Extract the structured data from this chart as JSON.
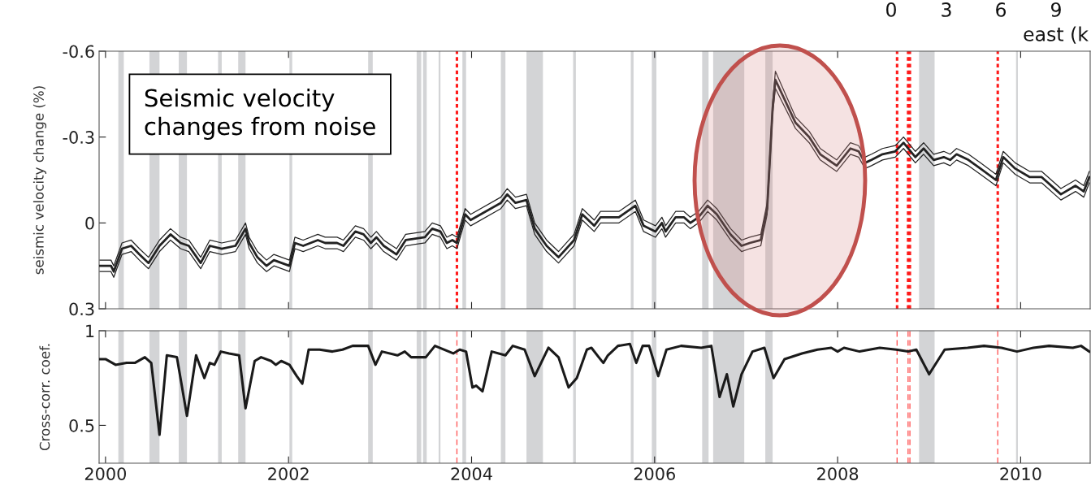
{
  "chart_data": [
    {
      "type": "line",
      "ylabel": "seismic velocity change (%)",
      "xlim": [
        1999.93,
        2010.76
      ],
      "xticks": [
        2000,
        2002,
        2004,
        2006,
        2008,
        2010
      ],
      "ylim": [
        0.3,
        -0.6
      ],
      "yticks": [
        {
          "value": -0.6,
          "label": "-0.6"
        },
        {
          "value": -0.3,
          "label": "-0.3"
        },
        0,
        0.3
      ],
      "tick_labels": "y",
      "x": [
        1999.94,
        2000.06,
        2000.09,
        2000.18,
        2000.28,
        2000.37,
        2000.47,
        2000.59,
        2000.71,
        2000.82,
        2000.91,
        2001.04,
        2001.14,
        2001.27,
        2001.42,
        2001.53,
        2001.57,
        2001.66,
        2001.76,
        2001.84,
        2002.01,
        2002.07,
        2002.16,
        2002.32,
        2002.4,
        2002.53,
        2002.6,
        2002.73,
        2002.82,
        2002.9,
        2002.96,
        2003.04,
        2003.18,
        2003.28,
        2003.49,
        2003.57,
        2003.66,
        2003.73,
        2003.79,
        2003.84,
        2003.93,
        2003.99,
        2004.32,
        2004.39,
        2004.48,
        2004.6,
        2004.69,
        2004.82,
        2004.95,
        2005.12,
        2005.21,
        2005.34,
        2005.41,
        2005.61,
        2005.79,
        2005.88,
        2006.01,
        2006.08,
        2006.12,
        2006.23,
        2006.32,
        2006.39,
        2006.48,
        2006.58,
        2006.68,
        2006.83,
        2006.95,
        2007.04,
        2007.16,
        2007.23,
        2007.29,
        2007.32,
        2007.54,
        2007.69,
        2007.81,
        2007.99,
        2008.14,
        2008.23,
        2008.3,
        2008.37,
        2008.49,
        2008.63,
        2008.72,
        2008.85,
        2008.94,
        2009.05,
        2009.16,
        2009.23,
        2009.3,
        2009.43,
        2009.56,
        2009.73,
        2009.81,
        2009.94,
        2010.1,
        2010.23,
        2010.44,
        2010.6,
        2010.69,
        2010.75
      ],
      "series": [
        {
          "color": "#222222",
          "values": [
            0.15,
            0.15,
            0.17,
            0.09,
            0.08,
            0.11,
            0.14,
            0.08,
            0.04,
            0.07,
            0.08,
            0.14,
            0.08,
            0.09,
            0.08,
            0.02,
            0.07,
            0.12,
            0.15,
            0.13,
            0.15,
            0.07,
            0.08,
            0.06,
            0.07,
            0.07,
            0.08,
            0.03,
            0.04,
            0.07,
            0.05,
            0.08,
            0.11,
            0.06,
            0.05,
            0.02,
            0.03,
            0.07,
            0.06,
            0.07,
            -0.03,
            -0.01,
            -0.07,
            -0.1,
            -0.07,
            -0.08,
            0.02,
            0.08,
            0.12,
            0.06,
            -0.03,
            0.01,
            -0.02,
            -0.02,
            -0.06,
            0.01,
            0.03,
            0.0,
            0.03,
            -0.02,
            -0.02,
            0.0,
            -0.02,
            -0.06,
            -0.03,
            0.04,
            0.08,
            0.07,
            0.06,
            -0.05,
            -0.4,
            -0.5,
            -0.35,
            -0.3,
            -0.24,
            -0.2,
            -0.26,
            -0.25,
            -0.21,
            -0.22,
            -0.24,
            -0.25,
            -0.28,
            -0.23,
            -0.26,
            -0.22,
            -0.23,
            -0.22,
            -0.24,
            -0.22,
            -0.19,
            -0.15,
            -0.23,
            -0.19,
            -0.16,
            -0.16,
            -0.1,
            -0.13,
            -0.11,
            -0.16
          ]
        },
        {
          "color": "#222222",
          "values": [
            0.13,
            0.13,
            0.15,
            0.07,
            0.06,
            0.09,
            0.12,
            0.06,
            0.02,
            0.05,
            0.06,
            0.12,
            0.06,
            0.07,
            0.06,
            0.0,
            0.05,
            0.1,
            0.13,
            0.11,
            0.13,
            0.05,
            0.06,
            0.04,
            0.05,
            0.05,
            0.06,
            0.01,
            0.02,
            0.05,
            0.03,
            0.06,
            0.09,
            0.04,
            0.03,
            0.0,
            0.01,
            0.05,
            0.04,
            0.05,
            -0.05,
            -0.03,
            -0.09,
            -0.12,
            -0.09,
            -0.1,
            0.0,
            0.06,
            0.1,
            0.04,
            -0.05,
            -0.01,
            -0.04,
            -0.04,
            -0.08,
            -0.01,
            0.01,
            -0.02,
            0.01,
            -0.04,
            -0.04,
            -0.02,
            -0.04,
            -0.08,
            -0.05,
            0.02,
            0.06,
            0.05,
            0.04,
            -0.07,
            -0.42,
            -0.53,
            -0.37,
            -0.32,
            -0.26,
            -0.22,
            -0.28,
            -0.27,
            -0.23,
            -0.24,
            -0.26,
            -0.27,
            -0.3,
            -0.25,
            -0.28,
            -0.24,
            -0.25,
            -0.24,
            -0.26,
            -0.24,
            -0.21,
            -0.17,
            -0.25,
            -0.21,
            -0.18,
            -0.18,
            -0.12,
            -0.15,
            -0.13,
            -0.18
          ]
        },
        {
          "color": "#222222",
          "values": [
            0.17,
            0.17,
            0.19,
            0.11,
            0.1,
            0.13,
            0.16,
            0.1,
            0.06,
            0.09,
            0.1,
            0.16,
            0.1,
            0.11,
            0.1,
            0.04,
            0.09,
            0.14,
            0.17,
            0.15,
            0.17,
            0.09,
            0.1,
            0.08,
            0.09,
            0.09,
            0.1,
            0.05,
            0.06,
            0.09,
            0.07,
            0.1,
            0.13,
            0.08,
            0.07,
            0.04,
            0.05,
            0.09,
            0.08,
            0.09,
            -0.01,
            0.01,
            -0.05,
            -0.08,
            -0.05,
            -0.06,
            0.04,
            0.1,
            0.14,
            0.08,
            -0.01,
            0.03,
            0.0,
            0.0,
            -0.04,
            0.03,
            0.05,
            0.02,
            0.05,
            0.0,
            0.0,
            0.02,
            0.0,
            -0.04,
            -0.01,
            0.06,
            0.1,
            0.09,
            0.08,
            -0.03,
            -0.38,
            -0.47,
            -0.33,
            -0.28,
            -0.22,
            -0.18,
            -0.24,
            -0.23,
            -0.19,
            -0.2,
            -0.22,
            -0.23,
            -0.26,
            -0.21,
            -0.24,
            -0.2,
            -0.21,
            -0.2,
            -0.22,
            -0.2,
            -0.17,
            -0.13,
            -0.21,
            -0.17,
            -0.14,
            -0.14,
            -0.08,
            -0.11,
            -0.09,
            -0.14
          ]
        }
      ],
      "bands": [
        {
          "axis": "x",
          "from": 2000.14,
          "to": 2000.2,
          "color": "#d3d4d6"
        },
        {
          "axis": "x",
          "from": 2000.48,
          "to": 2000.59,
          "color": "#d3d4d6"
        },
        {
          "axis": "x",
          "from": 2000.8,
          "to": 2000.89,
          "color": "#d3d4d6"
        },
        {
          "axis": "x",
          "from": 2001.23,
          "to": 2001.27,
          "color": "#d3d4d6"
        },
        {
          "axis": "x",
          "from": 2001.45,
          "to": 2001.53,
          "color": "#d3d4d6"
        },
        {
          "axis": "x",
          "from": 2002.01,
          "to": 2002.04,
          "color": "#d3d4d6"
        },
        {
          "axis": "x",
          "from": 2002.87,
          "to": 2002.92,
          "color": "#d3d4d6"
        },
        {
          "axis": "x",
          "from": 2003.4,
          "to": 2003.45,
          "color": "#d3d4d6"
        },
        {
          "axis": "x",
          "from": 2003.47,
          "to": 2003.51,
          "color": "#d3d4d6"
        },
        {
          "axis": "x",
          "from": 2003.64,
          "to": 2003.66,
          "color": "#d3d4d6"
        },
        {
          "axis": "x",
          "from": 2003.9,
          "to": 2003.94,
          "color": "#d3d4d6"
        },
        {
          "axis": "x",
          "from": 2004.32,
          "to": 2004.37,
          "color": "#d3d4d6"
        },
        {
          "axis": "x",
          "from": 2004.6,
          "to": 2004.78,
          "color": "#d3d4d6"
        },
        {
          "axis": "x",
          "from": 2005.11,
          "to": 2005.14,
          "color": "#d3d4d6"
        },
        {
          "axis": "x",
          "from": 2005.74,
          "to": 2005.77,
          "color": "#d3d4d6"
        },
        {
          "axis": "x",
          "from": 2005.97,
          "to": 2006.02,
          "color": "#d3d4d6"
        },
        {
          "axis": "x",
          "from": 2006.52,
          "to": 2006.59,
          "color": "#d3d4d6"
        },
        {
          "axis": "x",
          "from": 2006.64,
          "to": 2006.98,
          "color": "#d3d4d6"
        },
        {
          "axis": "x",
          "from": 2007.21,
          "to": 2007.29,
          "color": "#d3d4d6"
        },
        {
          "axis": "x",
          "from": 2008.89,
          "to": 2009.06,
          "color": "#d3d4d6"
        },
        {
          "axis": "x",
          "from": 2009.95,
          "to": 2009.97,
          "color": "#d3d4d6"
        }
      ],
      "ref_lines": [
        {
          "axis": "x",
          "value": 2003.84,
          "color": "#ff1a1a",
          "line_style": "dotted"
        },
        {
          "axis": "x",
          "value": 2008.65,
          "color": "#ff1a1a",
          "line_style": "dotted"
        },
        {
          "axis": "x",
          "value": 2008.77,
          "color": "#ff1a1a",
          "line_style": "dotted"
        },
        {
          "axis": "x",
          "value": 2008.79,
          "color": "#ff1a1a",
          "line_style": "dotted"
        },
        {
          "axis": "x",
          "value": 2009.75,
          "color": "#ff1a1a",
          "line_style": "dotted"
        }
      ],
      "annotations": [
        "Seismic velocity\nchanges from noise",
        "0",
        "3",
        "6",
        "9",
        "east (k"
      ]
    },
    {
      "type": "line",
      "ylabel": "Cross-corr. coef.",
      "xlim": [
        1999.93,
        2010.76
      ],
      "xticks": [
        2000,
        2002,
        2004,
        2006,
        2008,
        2010
      ],
      "ylim": [
        0.3,
        1
      ],
      "yticks": [
        0.5,
        1
      ],
      "x": [
        1999.93,
        2000.0,
        2000.11,
        2000.23,
        2000.32,
        2000.43,
        2000.5,
        2000.59,
        2000.67,
        2000.78,
        2000.89,
        2000.99,
        2001.08,
        2001.14,
        2001.19,
        2001.26,
        2001.35,
        2001.46,
        2001.53,
        2001.63,
        2001.7,
        2001.81,
        2001.86,
        2001.92,
        2002.01,
        2002.09,
        2002.15,
        2002.22,
        2002.34,
        2002.48,
        2002.59,
        2002.7,
        2002.87,
        2002.95,
        2003.02,
        2003.19,
        2003.27,
        2003.34,
        2003.5,
        2003.6,
        2003.8,
        2003.87,
        2003.94,
        2004.01,
        2004.05,
        2004.12,
        2004.22,
        2004.37,
        2004.45,
        2004.58,
        2004.69,
        2004.84,
        2004.95,
        2005.06,
        2005.15,
        2005.26,
        2005.31,
        2005.39,
        2005.44,
        2005.49,
        2005.6,
        2005.73,
        2005.8,
        2005.87,
        2005.94,
        2006.04,
        2006.13,
        2006.29,
        2006.51,
        2006.62,
        2006.71,
        2006.79,
        2006.86,
        2006.95,
        2007.07,
        2007.2,
        2007.3,
        2007.42,
        2007.61,
        2007.78,
        2007.93,
        2008.0,
        2008.07,
        2008.24,
        2008.46,
        2008.64,
        2008.77,
        2008.86,
        2009.0,
        2009.17,
        2009.42,
        2009.6,
        2009.79,
        2009.96,
        2010.14,
        2010.31,
        2010.57,
        2010.66,
        2010.75
      ],
      "series": [
        {
          "color": "#1a1a1a",
          "values": [
            0.85,
            0.85,
            0.82,
            0.83,
            0.83,
            0.86,
            0.83,
            0.45,
            0.87,
            0.86,
            0.55,
            0.87,
            0.75,
            0.83,
            0.82,
            0.89,
            0.88,
            0.87,
            0.59,
            0.84,
            0.86,
            0.84,
            0.82,
            0.84,
            0.82,
            0.76,
            0.72,
            0.9,
            0.9,
            0.89,
            0.9,
            0.92,
            0.92,
            0.82,
            0.89,
            0.87,
            0.89,
            0.86,
            0.86,
            0.92,
            0.88,
            0.9,
            0.89,
            0.7,
            0.71,
            0.68,
            0.89,
            0.87,
            0.92,
            0.9,
            0.76,
            0.91,
            0.86,
            0.7,
            0.75,
            0.9,
            0.91,
            0.86,
            0.83,
            0.87,
            0.92,
            0.93,
            0.83,
            0.92,
            0.92,
            0.76,
            0.9,
            0.92,
            0.91,
            0.92,
            0.65,
            0.77,
            0.6,
            0.77,
            0.89,
            0.91,
            0.75,
            0.85,
            0.88,
            0.9,
            0.91,
            0.89,
            0.91,
            0.89,
            0.91,
            0.9,
            0.89,
            0.9,
            0.77,
            0.9,
            0.91,
            0.92,
            0.91,
            0.89,
            0.91,
            0.92,
            0.91,
            0.92,
            0.89
          ]
        }
      ],
      "bands": [
        {
          "axis": "x",
          "from": 2000.14,
          "to": 2000.2,
          "color": "#d3d4d6"
        },
        {
          "axis": "x",
          "from": 2000.48,
          "to": 2000.59,
          "color": "#d3d4d6"
        },
        {
          "axis": "x",
          "from": 2000.8,
          "to": 2000.89,
          "color": "#d3d4d6"
        },
        {
          "axis": "x",
          "from": 2001.23,
          "to": 2001.27,
          "color": "#d3d4d6"
        },
        {
          "axis": "x",
          "from": 2001.45,
          "to": 2001.53,
          "color": "#d3d4d6"
        },
        {
          "axis": "x",
          "from": 2002.01,
          "to": 2002.04,
          "color": "#d3d4d6"
        },
        {
          "axis": "x",
          "from": 2002.87,
          "to": 2002.92,
          "color": "#d3d4d6"
        },
        {
          "axis": "x",
          "from": 2003.4,
          "to": 2003.45,
          "color": "#d3d4d6"
        },
        {
          "axis": "x",
          "from": 2003.47,
          "to": 2003.51,
          "color": "#d3d4d6"
        },
        {
          "axis": "x",
          "from": 2003.64,
          "to": 2003.66,
          "color": "#d3d4d6"
        },
        {
          "axis": "x",
          "from": 2003.9,
          "to": 2003.94,
          "color": "#d3d4d6"
        },
        {
          "axis": "x",
          "from": 2004.32,
          "to": 2004.37,
          "color": "#d3d4d6"
        },
        {
          "axis": "x",
          "from": 2004.6,
          "to": 2004.78,
          "color": "#d3d4d6"
        },
        {
          "axis": "x",
          "from": 2005.11,
          "to": 2005.14,
          "color": "#d3d4d6"
        },
        {
          "axis": "x",
          "from": 2005.74,
          "to": 2005.77,
          "color": "#d3d4d6"
        },
        {
          "axis": "x",
          "from": 2005.97,
          "to": 2006.02,
          "color": "#d3d4d6"
        },
        {
          "axis": "x",
          "from": 2006.52,
          "to": 2006.59,
          "color": "#d3d4d6"
        },
        {
          "axis": "x",
          "from": 2006.64,
          "to": 2006.98,
          "color": "#d3d4d6"
        },
        {
          "axis": "x",
          "from": 2007.21,
          "to": 2007.29,
          "color": "#d3d4d6"
        },
        {
          "axis": "x",
          "from": 2008.89,
          "to": 2009.06,
          "color": "#d3d4d6"
        },
        {
          "axis": "x",
          "from": 2009.95,
          "to": 2009.97,
          "color": "#d3d4d6"
        }
      ],
      "ref_lines": [
        {
          "axis": "x",
          "value": 2003.84,
          "color": "#ff5a5a",
          "line_style": "dashed"
        },
        {
          "axis": "x",
          "value": 2008.65,
          "color": "#ff5a5a",
          "line_style": "dashed"
        },
        {
          "axis": "x",
          "value": 2008.77,
          "color": "#ff5a5a",
          "line_style": "dashed"
        },
        {
          "axis": "x",
          "value": 2008.79,
          "color": "#ff5a5a",
          "line_style": "dashed"
        },
        {
          "axis": "x",
          "value": 2009.75,
          "color": "#ff5a5a",
          "line_style": "dashed"
        }
      ]
    }
  ]
}
